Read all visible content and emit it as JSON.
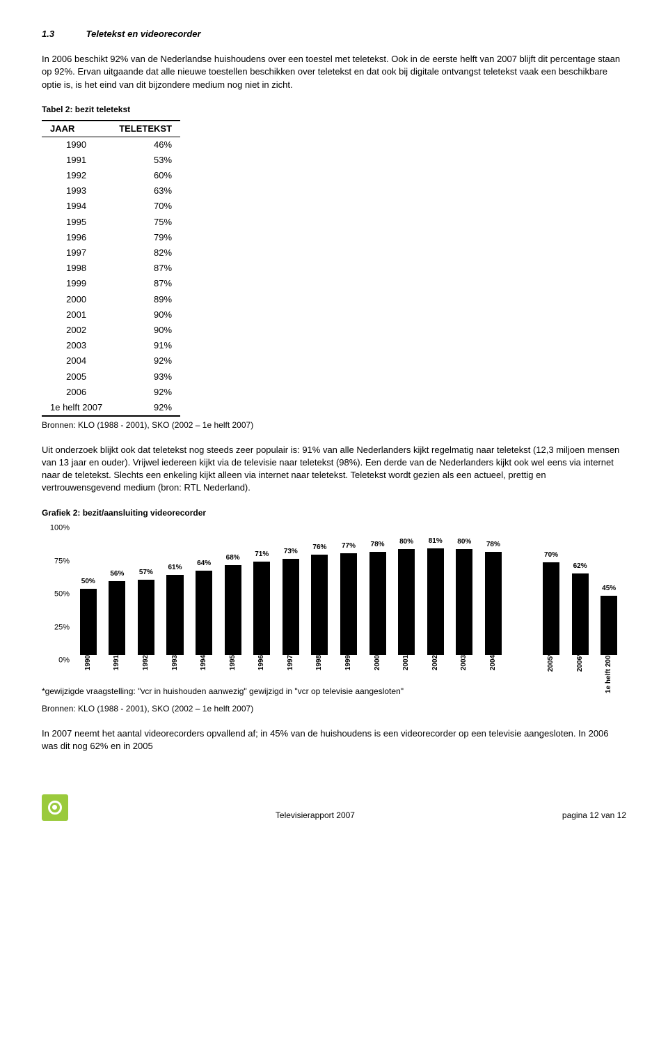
{
  "section": {
    "number": "1.3",
    "title": "Teletekst en videorecorder"
  },
  "para1": "In 2006 beschikt 92% van de Nederlandse huishoudens over een toestel met teletekst. Ook in de eerste helft van 2007 blijft dit percentage staan op 92%. Ervan uitgaande dat alle nieuwe toestellen beschikken over teletekst en dat ook bij digitale ontvangst teletekst vaak een beschikbare optie is, is het eind van dit bijzondere medium nog niet in zicht.",
  "table2": {
    "caption": "Tabel 2: bezit teletekst",
    "head": [
      "JAAR",
      "TELETEKST"
    ],
    "rows": [
      [
        "1990",
        "46%"
      ],
      [
        "1991",
        "53%"
      ],
      [
        "1992",
        "60%"
      ],
      [
        "1993",
        "63%"
      ],
      [
        "1994",
        "70%"
      ],
      [
        "1995",
        "75%"
      ],
      [
        "1996",
        "79%"
      ],
      [
        "1997",
        "82%"
      ],
      [
        "1998",
        "87%"
      ],
      [
        "1999",
        "87%"
      ],
      [
        "2000",
        "89%"
      ],
      [
        "2001",
        "90%"
      ],
      [
        "2002",
        "90%"
      ],
      [
        "2003",
        "91%"
      ],
      [
        "2004",
        "92%"
      ],
      [
        "2005",
        "93%"
      ],
      [
        "2006",
        "92%"
      ],
      [
        "1e helft 2007",
        "92%"
      ]
    ],
    "source": "Bronnen: KLO (1988 - 2001), SKO (2002 – 1e helft 2007)"
  },
  "para2": "Uit onderzoek blijkt ook dat teletekst nog steeds zeer populair is: 91% van alle Nederlanders kijkt regelmatig naar teletekst (12,3 miljoen mensen van 13 jaar en ouder). Vrijwel iedereen kijkt via de televisie naar teletekst (98%). Een derde van de Nederlanders kijkt ook wel eens via internet naar de teletekst. Slechts een enkeling kijkt alleen via internet naar teletekst. Teletekst wordt gezien als een actueel, prettig en vertrouwensgevend medium (bron: RTL Nederland).",
  "chart": {
    "caption": "Grafiek 2: bezit/aansluiting videorecorder",
    "type": "bar",
    "ymax": 100,
    "yticks": [
      0,
      25,
      50,
      75,
      100
    ],
    "ytick_labels": [
      "0%",
      "25%",
      "50%",
      "75%",
      "100%"
    ],
    "bar_color": "#000000",
    "background": "#ffffff",
    "categories": [
      "1990",
      "1991",
      "1992",
      "1993",
      "1994",
      "1995",
      "1996",
      "1997",
      "1998",
      "1999",
      "2000",
      "2001",
      "2002",
      "2003",
      "2004",
      "",
      "2005*",
      "2006*",
      "1e helft 2007*"
    ],
    "values": [
      50,
      56,
      57,
      61,
      64,
      68,
      71,
      73,
      76,
      77,
      78,
      80,
      81,
      80,
      78,
      null,
      70,
      62,
      45
    ],
    "value_labels": [
      "50%",
      "56%",
      "57%",
      "61%",
      "64%",
      "68%",
      "71%",
      "73%",
      "76%",
      "77%",
      "78%",
      "80%",
      "81%",
      "80%",
      "78%",
      "",
      "70%",
      "62%",
      "45%"
    ]
  },
  "chart_footnote1": "*gewijzigde vraagstelling: \"vcr in huishouden aanwezig\" gewijzigd in  \"vcr op televisie aangesloten\"",
  "chart_footnote2": "Bronnen: KLO (1988 - 2001), SKO (2002 – 1e helft 2007)",
  "para3": "In 2007 neemt het aantal videorecorders opvallend af; in 45% van de huishoudens is een videorecorder op een televisie aangesloten. In 2006 was dit nog 62% en in 2005",
  "footer": {
    "center": "Televisierapport 2007",
    "right": "pagina 12 van 12"
  }
}
